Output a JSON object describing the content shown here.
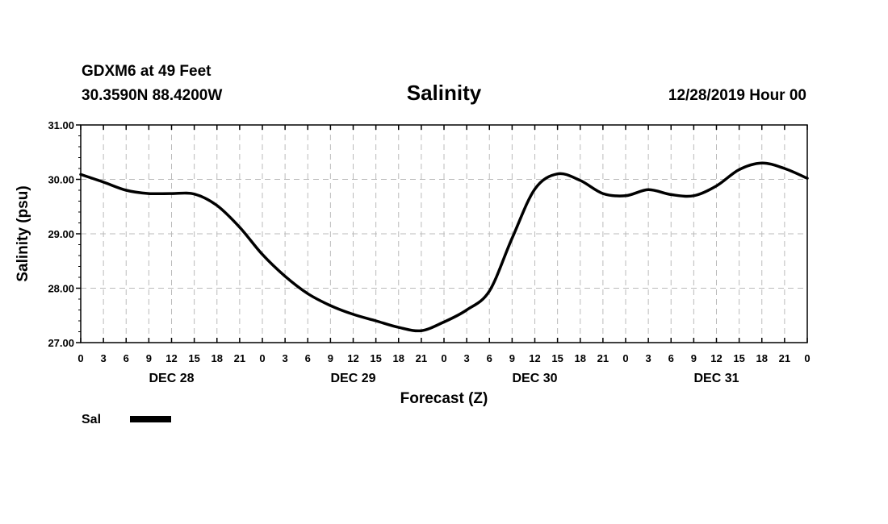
{
  "header": {
    "station": "GDXM6 at 49 Feet",
    "coords": "30.3590N 88.4200W",
    "title": "Salinity",
    "run": "12/28/2019 Hour 00"
  },
  "legend": {
    "label": "Sal",
    "color": "#000000"
  },
  "chart_data": {
    "type": "line",
    "title": "Salinity",
    "xlabel": "Forecast (Z)",
    "ylabel": "Salinity (psu)",
    "ylim": [
      27.0,
      31.0
    ],
    "yticks": [
      "27.00",
      "28.00",
      "29.00",
      "30.00",
      "31.00"
    ],
    "xlim_hours": [
      0,
      96
    ],
    "xtick_labels": [
      "0",
      "3",
      "6",
      "9",
      "12",
      "15",
      "18",
      "21",
      "0",
      "3",
      "6",
      "9",
      "12",
      "15",
      "18",
      "21",
      "0",
      "3",
      "6",
      "9",
      "12",
      "15",
      "18",
      "21",
      "0",
      "3",
      "6",
      "9",
      "12",
      "15",
      "18",
      "21",
      "0"
    ],
    "day_labels": [
      {
        "label": "DEC 28",
        "center_hour": 12
      },
      {
        "label": "DEC 29",
        "center_hour": 36
      },
      {
        "label": "DEC 30",
        "center_hour": 60
      },
      {
        "label": "DEC 31",
        "center_hour": 84
      }
    ],
    "grid": true,
    "series": [
      {
        "name": "Sal",
        "color": "#000000",
        "x": [
          0,
          3,
          6,
          9,
          12,
          15,
          18,
          21,
          24,
          27,
          30,
          33,
          36,
          39,
          42,
          45,
          48,
          51,
          54,
          57,
          60,
          63,
          66,
          69,
          72,
          75,
          78,
          81,
          84,
          87,
          90,
          93,
          96
        ],
        "y": [
          30.09,
          29.95,
          29.8,
          29.74,
          29.74,
          29.73,
          29.52,
          29.12,
          28.62,
          28.22,
          27.9,
          27.68,
          27.52,
          27.4,
          27.28,
          27.22,
          27.38,
          27.6,
          27.95,
          28.92,
          29.82,
          30.1,
          29.98,
          29.74,
          29.7,
          29.81,
          29.72,
          29.7,
          29.88,
          30.18,
          30.3,
          30.2,
          30.02
        ]
      }
    ]
  }
}
